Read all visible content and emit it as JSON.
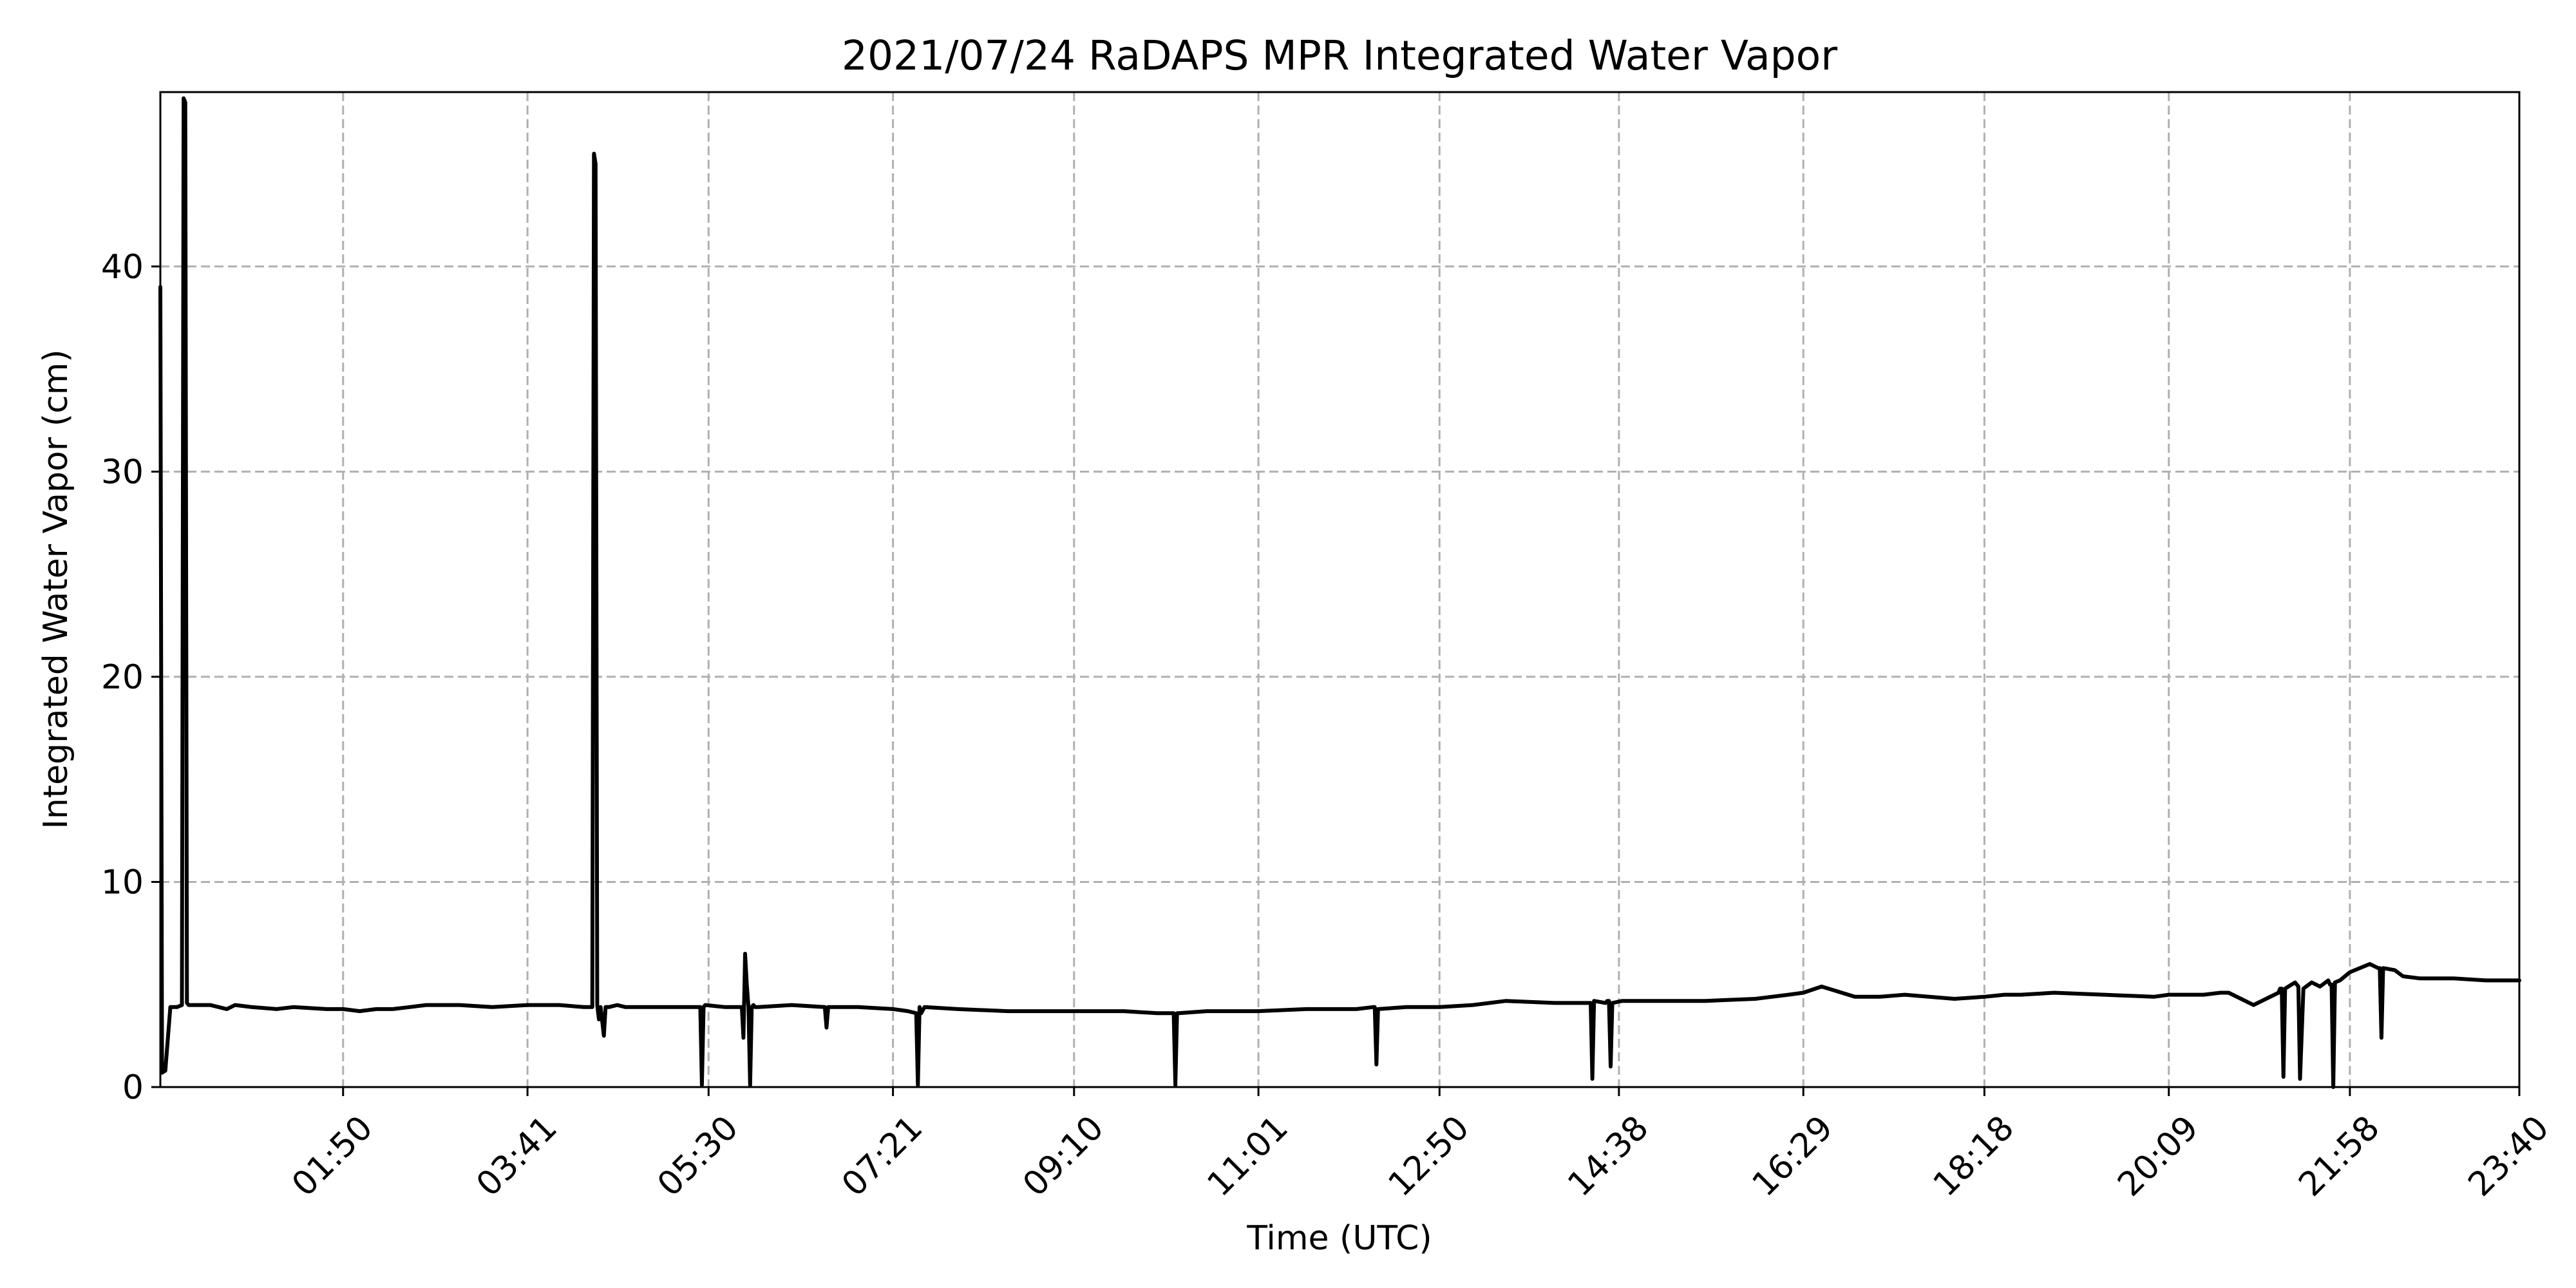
{
  "chart_data": {
    "type": "line",
    "title": "2021/07/24 RaDAPS MPR Integrated Water Vapor",
    "xlabel": "Time (UTC)",
    "ylabel": "Integrated Water Vapor (cm)",
    "xlim": [
      "00:00",
      "23:40"
    ],
    "ylim": [
      0,
      48.5
    ],
    "grid": true,
    "x_ticks": [
      "01:50",
      "03:41",
      "05:30",
      "07:21",
      "09:10",
      "11:01",
      "12:50",
      "14:38",
      "16:29",
      "18:18",
      "20:09",
      "21:58",
      "23:40"
    ],
    "y_ticks": [
      "0",
      "10",
      "20",
      "30",
      "40"
    ],
    "series": [
      {
        "color": "#000000",
        "x": [
          "00:00",
          "00:01",
          "00:03",
          "00:06",
          "00:10",
          "00:13",
          "00:14",
          "00:15",
          "00:16",
          "00:17",
          "00:30",
          "00:40",
          "00:45",
          "00:55",
          "01:10",
          "01:20",
          "01:40",
          "01:50",
          "02:00",
          "02:10",
          "02:20",
          "02:30",
          "02:40",
          "03:00",
          "03:20",
          "03:41",
          "04:00",
          "04:15",
          "04:20",
          "04:21",
          "04:22",
          "04:23",
          "04:24",
          "04:25",
          "04:27",
          "04:28",
          "04:29",
          "04:30",
          "04:35",
          "04:40",
          "05:00",
          "05:20",
          "05:25",
          "05:26",
          "05:27",
          "05:28",
          "05:40",
          "05:50",
          "05:51",
          "05:52",
          "05:53",
          "05:54",
          "05:55",
          "05:56",
          "05:57",
          "05:58",
          "06:00",
          "06:20",
          "06:40",
          "06:41",
          "06:42",
          "07:00",
          "07:21",
          "07:30",
          "07:35",
          "07:36",
          "07:37",
          "07:38",
          "07:40",
          "08:00",
          "08:30",
          "09:10",
          "09:30",
          "09:40",
          "10:00",
          "10:10",
          "10:11",
          "10:12",
          "10:13",
          "10:30",
          "11:01",
          "11:30",
          "12:00",
          "12:10",
          "12:11",
          "12:12",
          "12:13",
          "12:30",
          "12:50",
          "13:10",
          "13:30",
          "14:00",
          "14:20",
          "14:21",
          "14:22",
          "14:23",
          "14:30",
          "14:31",
          "14:32",
          "14:33",
          "14:34",
          "14:40",
          "15:00",
          "15:30",
          "16:00",
          "16:10",
          "16:20",
          "16:29",
          "16:40",
          "17:00",
          "17:15",
          "17:30",
          "18:00",
          "18:18",
          "18:30",
          "18:40",
          "19:00",
          "19:30",
          "20:00",
          "20:09",
          "20:30",
          "20:40",
          "20:45",
          "21:00",
          "21:15",
          "21:16",
          "21:17",
          "21:18",
          "21:19",
          "21:25",
          "21:26",
          "21:27",
          "21:28",
          "21:30",
          "21:35",
          "21:40",
          "21:45",
          "21:46",
          "21:47",
          "21:48",
          "21:49",
          "21:52",
          "21:58",
          "22:10",
          "22:15",
          "22:16",
          "22:17",
          "22:18",
          "22:25",
          "22:30",
          "22:40",
          "23:00",
          "23:20",
          "23:40"
        ],
        "y": [
          39.0,
          0.7,
          0.8,
          3.9,
          3.9,
          4.0,
          48.2,
          48.0,
          4.1,
          4.0,
          4.0,
          3.8,
          4.0,
          3.9,
          3.8,
          3.9,
          3.8,
          3.8,
          3.7,
          3.8,
          3.8,
          3.9,
          4.0,
          4.0,
          3.9,
          4.0,
          4.0,
          3.9,
          3.9,
          45.5,
          45.0,
          4.0,
          3.3,
          3.9,
          2.5,
          3.9,
          3.9,
          3.9,
          4.0,
          3.9,
          3.9,
          3.9,
          3.9,
          0.1,
          3.9,
          4.0,
          3.9,
          3.9,
          2.4,
          6.5,
          5.0,
          3.9,
          0.1,
          3.9,
          4.0,
          3.9,
          3.9,
          4.0,
          3.9,
          2.9,
          3.9,
          3.9,
          3.8,
          3.7,
          3.6,
          0.1,
          3.9,
          3.6,
          3.9,
          3.8,
          3.7,
          3.7,
          3.7,
          3.7,
          3.6,
          3.6,
          0.1,
          3.6,
          3.6,
          3.7,
          3.7,
          3.8,
          3.8,
          3.9,
          3.9,
          1.1,
          3.8,
          3.9,
          3.9,
          4.0,
          4.2,
          4.1,
          4.1,
          4.1,
          0.4,
          4.2,
          4.1,
          4.2,
          4.2,
          1.0,
          4.1,
          4.2,
          4.2,
          4.2,
          4.3,
          4.4,
          4.5,
          4.6,
          4.9,
          4.4,
          4.4,
          4.5,
          4.3,
          4.4,
          4.5,
          4.5,
          4.6,
          4.5,
          4.4,
          4.5,
          4.5,
          4.6,
          4.6,
          4.0,
          4.6,
          4.8,
          4.8,
          0.5,
          4.8,
          5.1,
          5.0,
          4.9,
          0.4,
          4.8,
          5.1,
          4.9,
          5.2,
          5.0,
          5.0,
          0.0,
          5.1,
          5.2,
          5.6,
          6.0,
          5.8,
          5.8,
          2.4,
          5.8,
          5.7,
          5.4,
          5.3,
          5.3,
          5.2,
          5.2
        ]
      }
    ]
  }
}
